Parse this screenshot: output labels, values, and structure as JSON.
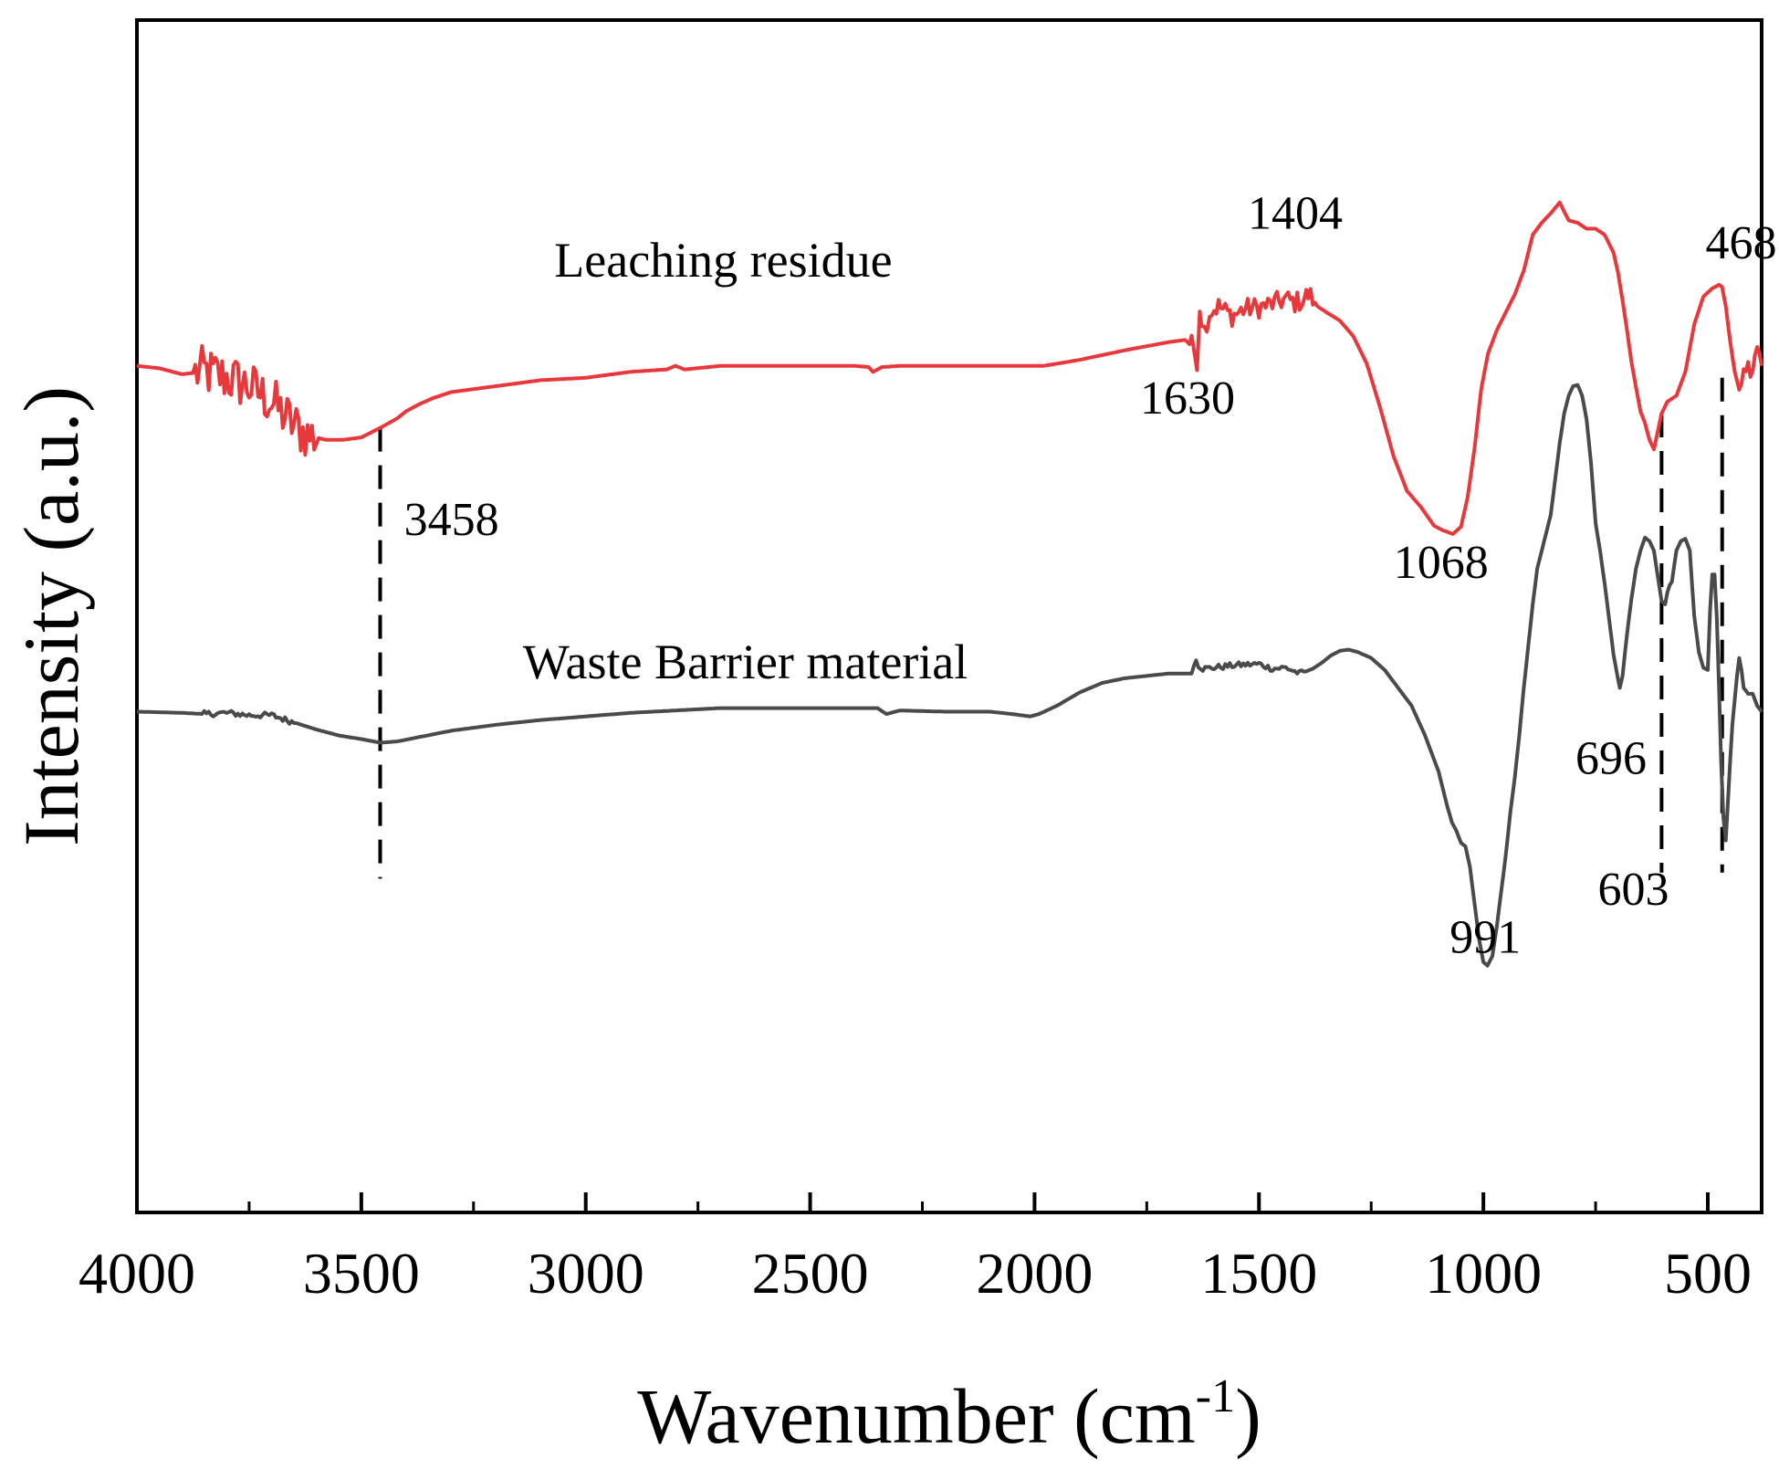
{
  "chart_data": {
    "type": "line",
    "title": "",
    "xlabel": "Wavenumber (cm",
    "xlabel_superscript": "-1",
    "xlabel_suffix": ")",
    "ylabel": "Intensity (a.u.)",
    "xlim": [
      4000,
      380
    ],
    "x_reversed": true,
    "ylim": [
      0,
      100
    ],
    "y_ticks_shown": false,
    "grid": false,
    "legend": "none",
    "x_ticks": [
      4000,
      3500,
      3000,
      2500,
      2000,
      1500,
      1000,
      500
    ],
    "x_tick_labels": [
      "4000",
      "3500",
      "3000",
      "2500",
      "2000",
      "1500",
      "1000",
      "500"
    ],
    "x_minor_ticks": [
      3750,
      3250,
      2750,
      2250,
      1750,
      1250,
      750
    ],
    "series": [
      {
        "name": "Leaching residue",
        "color": "#e8383b",
        "noise_ranges": [
          [
            3870,
            3600,
            2.2
          ],
          [
            1660,
            1380,
            0.9
          ],
          [
            420,
            380,
            1.2
          ]
        ],
        "x": [
          4000,
          3950,
          3900,
          3850,
          3800,
          3750,
          3700,
          3650,
          3620,
          3580,
          3540,
          3500,
          3458,
          3420,
          3400,
          3370,
          3340,
          3300,
          3200,
          3100,
          3000,
          2900,
          2820,
          2800,
          2780,
          2700,
          2600,
          2500,
          2400,
          2370,
          2360,
          2340,
          2300,
          2200,
          2100,
          2000,
          1980,
          1900,
          1800,
          1700,
          1660,
          1645,
          1638,
          1632,
          1628,
          1622,
          1610,
          1590,
          1560,
          1530,
          1500,
          1470,
          1440,
          1420,
          1404,
          1390,
          1380,
          1370,
          1350,
          1320,
          1290,
          1260,
          1230,
          1200,
          1170,
          1140,
          1110,
          1090,
          1068,
          1050,
          1035,
          1020,
          1005,
          990,
          970,
          950,
          930,
          910,
          890,
          870,
          850,
          830,
          810,
          790,
          770,
          750,
          730,
          710,
          700,
          690,
          680,
          670,
          660,
          650,
          640,
          630,
          620,
          603,
          590,
          570,
          550,
          530,
          510,
          490,
          475,
          468,
          460,
          450,
          440,
          430,
          420,
          410,
          400,
          390,
          380
        ],
        "y": [
          71.0,
          70.8,
          70.3,
          70.5,
          70.0,
          69.3,
          68.0,
          66.0,
          65.2,
          64.8,
          64.8,
          65.0,
          65.8,
          66.6,
          67.2,
          67.8,
          68.3,
          68.8,
          69.3,
          69.8,
          70.0,
          70.5,
          70.7,
          71.0,
          70.7,
          71.0,
          71.0,
          71.0,
          71.0,
          70.9,
          70.5,
          70.9,
          71.0,
          71.0,
          71.0,
          71.0,
          71.0,
          71.5,
          72.3,
          73.0,
          73.2,
          72.5,
          71.5,
          76.0,
          75.0,
          74.0,
          75.5,
          76.0,
          75.2,
          75.8,
          75.9,
          76.2,
          76.6,
          76.3,
          76.5,
          77.0,
          76.6,
          76.0,
          75.5,
          74.8,
          73.5,
          71.2,
          67.5,
          63.4,
          60.5,
          59.2,
          57.6,
          57.2,
          56.9,
          57.5,
          60.0,
          64.0,
          69.0,
          72.0,
          74.0,
          75.5,
          77.0,
          79.0,
          82.0,
          83.0,
          83.8,
          84.7,
          83.2,
          83.0,
          82.5,
          82.5,
          82.0,
          80.5,
          78.8,
          76.5,
          74.0,
          71.3,
          69.2,
          67.2,
          66.2,
          64.8,
          64.0,
          67.0,
          68.0,
          68.5,
          70.5,
          74.5,
          76.8,
          77.5,
          77.8,
          77.6,
          76.0,
          73.0,
          70.5,
          69.0,
          70.0,
          71.5,
          71.0,
          71.8,
          71.0
        ]
      },
      {
        "name": "Waste Barrier material",
        "color": "#4a4a4a",
        "noise_ranges": [
          [
            3850,
            3650,
            0.25
          ],
          [
            1640,
            1400,
            0.25
          ]
        ],
        "x": [
          4000,
          3900,
          3850,
          3800,
          3750,
          3700,
          3650,
          3600,
          3550,
          3500,
          3458,
          3420,
          3380,
          3340,
          3300,
          3200,
          3100,
          3000,
          2900,
          2800,
          2700,
          2600,
          2500,
          2400,
          2350,
          2330,
          2300,
          2200,
          2100,
          2050,
          2010,
          1990,
          1950,
          1900,
          1850,
          1800,
          1700,
          1650,
          1640,
          1635,
          1625,
          1600,
          1550,
          1500,
          1470,
          1440,
          1410,
          1400,
          1380,
          1360,
          1340,
          1320,
          1300,
          1280,
          1250,
          1220,
          1190,
          1160,
          1130,
          1100,
          1080,
          1070,
          1060,
          1050,
          1040,
          1030,
          1020,
          1010,
          1000,
          991,
          980,
          970,
          960,
          950,
          940,
          930,
          920,
          910,
          900,
          890,
          880,
          870,
          860,
          850,
          840,
          830,
          820,
          810,
          800,
          790,
          780,
          770,
          760,
          750,
          740,
          730,
          720,
          710,
          700,
          696,
          690,
          680,
          670,
          660,
          650,
          640,
          630,
          620,
          610,
          603,
          595,
          590,
          585,
          580,
          570,
          560,
          550,
          540,
          535,
          530,
          520,
          510,
          500,
          495,
          490,
          485,
          480,
          475,
          470,
          465,
          460,
          455,
          450,
          445,
          440,
          435,
          430,
          425,
          420,
          410,
          400,
          390,
          380
        ],
        "y": [
          42.0,
          41.9,
          41.8,
          41.9,
          41.7,
          41.7,
          41.1,
          40.5,
          40.0,
          39.7,
          39.4,
          39.5,
          39.8,
          40.1,
          40.4,
          40.9,
          41.3,
          41.6,
          41.9,
          42.1,
          42.3,
          42.3,
          42.3,
          42.3,
          42.3,
          41.8,
          42.1,
          42.0,
          42.0,
          41.8,
          41.6,
          41.8,
          42.5,
          43.6,
          44.4,
          44.8,
          45.2,
          45.2,
          46.5,
          45.9,
          45.6,
          45.7,
          45.9,
          46.0,
          45.6,
          45.7,
          45.2,
          45.3,
          45.6,
          46.1,
          46.7,
          47.1,
          47.2,
          47.0,
          46.5,
          45.5,
          44.0,
          42.5,
          40.0,
          37.0,
          34.0,
          32.7,
          32.0,
          31.0,
          30.7,
          29.0,
          26.0,
          23.0,
          21.0,
          20.7,
          21.5,
          24.0,
          27.0,
          30.0,
          33.5,
          36.5,
          40.0,
          44.0,
          47.5,
          51.0,
          54.0,
          55.5,
          57.0,
          58.5,
          61.5,
          64.5,
          67.0,
          68.5,
          69.3,
          69.4,
          68.5,
          66.5,
          62.8,
          57.8,
          55.5,
          52.8,
          49.8,
          46.8,
          44.7,
          44.0,
          45.0,
          48.5,
          51.5,
          54.0,
          55.5,
          56.6,
          56.3,
          55.5,
          53.0,
          51.3,
          51.0,
          52.0,
          52.6,
          52.9,
          55.5,
          56.3,
          56.5,
          55.5,
          52.6,
          50.0,
          47.0,
          45.7,
          45.5,
          50.5,
          53.5,
          53.5,
          50.0,
          44.0,
          37.5,
          33.0,
          31.2,
          34.5,
          38.0,
          41.0,
          43.0,
          45.0,
          46.5,
          45.5,
          44.0,
          43.5,
          43.5,
          42.5,
          42.0
        ]
      }
    ],
    "series_labels": [
      {
        "text": "Leaching residue",
        "x": 3070,
        "y": 78.5
      },
      {
        "text": "Waste Barrier material",
        "x": 3140,
        "y": 44.8
      }
    ],
    "dashed_lines": [
      {
        "x": 3458,
        "y1": 65.8,
        "y2": 28.0
      },
      {
        "x": 603,
        "y1": 67.0,
        "y2": 28.5
      },
      {
        "x": 468,
        "y1": 70.0,
        "y2": 28.5
      }
    ],
    "annotations": [
      {
        "text": "3458",
        "x": 3405,
        "y": 56.8,
        "anchor": "start"
      },
      {
        "text": "1630",
        "x": 1765,
        "y": 67.0,
        "anchor": "start"
      },
      {
        "text": "1404",
        "x": 1525,
        "y": 82.5,
        "anchor": "start"
      },
      {
        "text": "1068",
        "x": 1200,
        "y": 53.2,
        "anchor": "start"
      },
      {
        "text": "468",
        "x": 505,
        "y": 80.0,
        "anchor": "start"
      },
      {
        "text": "696",
        "x": 795,
        "y": 36.8,
        "anchor": "start"
      },
      {
        "text": "603",
        "x": 745,
        "y": 25.8,
        "anchor": "start"
      },
      {
        "text": "991",
        "x": 1075,
        "y": 21.8,
        "anchor": "start"
      }
    ]
  }
}
